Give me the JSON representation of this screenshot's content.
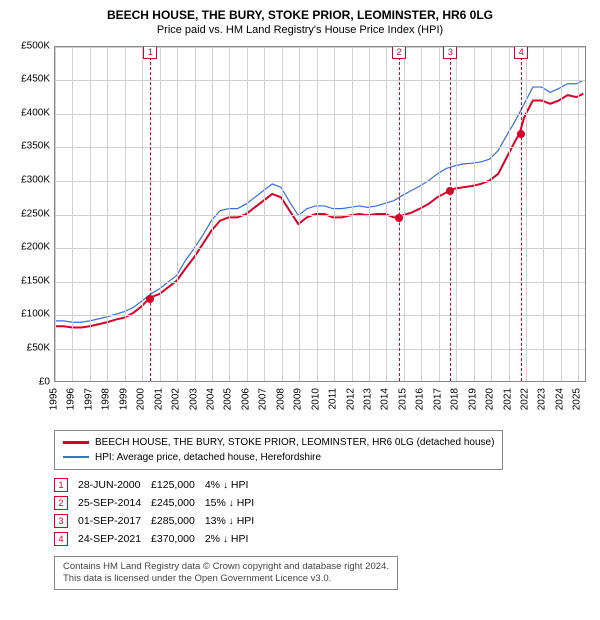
{
  "title_line1": "BEECH HOUSE, THE BURY, STOKE PRIOR, LEOMINSTER, HR6 0LG",
  "title_line2": "Price paid vs. HM Land Registry's House Price Index (HPI)",
  "chart": {
    "type": "line",
    "background_color": "#ffffff",
    "grid_color": "#d0d0d0",
    "axis_color": "#888888",
    "x_years_start": 1995,
    "x_years_end": 2025,
    "x_ticks": [
      1995,
      1996,
      1997,
      1998,
      1999,
      2000,
      2001,
      2002,
      2003,
      2004,
      2005,
      2006,
      2007,
      2008,
      2009,
      2010,
      2011,
      2012,
      2013,
      2014,
      2015,
      2016,
      2017,
      2018,
      2019,
      2020,
      2021,
      2022,
      2023,
      2024,
      2025
    ],
    "ylim": [
      0,
      500000
    ],
    "ytick_step": 50000,
    "yticks": [
      "£0",
      "£50K",
      "£100K",
      "£150K",
      "£200K",
      "£250K",
      "£300K",
      "£350K",
      "£400K",
      "£450K",
      "£500K"
    ],
    "series": [
      {
        "name": "property",
        "label": "BEECH HOUSE, THE BURY, STOKE PRIOR, LEOMINSTER, HR6 0LG (detached house)",
        "color": "#d8002a",
        "width": 2,
        "points": [
          [
            1995.0,
            82000
          ],
          [
            1995.5,
            82000
          ],
          [
            1996.0,
            80000
          ],
          [
            1996.5,
            80000
          ],
          [
            1997.0,
            82000
          ],
          [
            1997.5,
            85000
          ],
          [
            1998.0,
            88000
          ],
          [
            1998.5,
            92000
          ],
          [
            1999.0,
            95000
          ],
          [
            1999.5,
            102000
          ],
          [
            2000.0,
            112000
          ],
          [
            2000.47,
            125000
          ],
          [
            2001.0,
            130000
          ],
          [
            2001.5,
            140000
          ],
          [
            2002.0,
            150000
          ],
          [
            2002.5,
            168000
          ],
          [
            2003.0,
            185000
          ],
          [
            2003.5,
            205000
          ],
          [
            2004.0,
            225000
          ],
          [
            2004.5,
            240000
          ],
          [
            2005.0,
            245000
          ],
          [
            2005.5,
            245000
          ],
          [
            2006.0,
            250000
          ],
          [
            2006.5,
            260000
          ],
          [
            2007.0,
            270000
          ],
          [
            2007.5,
            280000
          ],
          [
            2008.0,
            275000
          ],
          [
            2008.5,
            255000
          ],
          [
            2009.0,
            235000
          ],
          [
            2009.5,
            245000
          ],
          [
            2010.0,
            250000
          ],
          [
            2010.5,
            250000
          ],
          [
            2011.0,
            245000
          ],
          [
            2011.5,
            245000
          ],
          [
            2012.0,
            248000
          ],
          [
            2012.5,
            250000
          ],
          [
            2013.0,
            248000
          ],
          [
            2013.5,
            250000
          ],
          [
            2014.0,
            250000
          ],
          [
            2014.5,
            245000
          ],
          [
            2014.73,
            245000
          ],
          [
            2015.0,
            248000
          ],
          [
            2015.5,
            252000
          ],
          [
            2016.0,
            258000
          ],
          [
            2016.5,
            265000
          ],
          [
            2017.0,
            275000
          ],
          [
            2017.5,
            282000
          ],
          [
            2017.67,
            285000
          ],
          [
            2018.0,
            288000
          ],
          [
            2018.5,
            290000
          ],
          [
            2019.0,
            292000
          ],
          [
            2019.5,
            295000
          ],
          [
            2020.0,
            300000
          ],
          [
            2020.5,
            310000
          ],
          [
            2021.0,
            335000
          ],
          [
            2021.5,
            360000
          ],
          [
            2021.73,
            370000
          ],
          [
            2022.0,
            395000
          ],
          [
            2022.5,
            420000
          ],
          [
            2023.0,
            420000
          ],
          [
            2023.5,
            415000
          ],
          [
            2024.0,
            420000
          ],
          [
            2024.5,
            428000
          ],
          [
            2025.0,
            425000
          ],
          [
            2025.4,
            430000
          ]
        ]
      },
      {
        "name": "hpi",
        "label": "HPI: Average price, detached house, Herefordshire",
        "color": "#3a6fd8",
        "width": 1.2,
        "points": [
          [
            1995.0,
            90000
          ],
          [
            1995.5,
            90000
          ],
          [
            1996.0,
            88000
          ],
          [
            1996.5,
            88000
          ],
          [
            1997.0,
            90000
          ],
          [
            1997.5,
            93000
          ],
          [
            1998.0,
            96000
          ],
          [
            1998.5,
            100000
          ],
          [
            1999.0,
            104000
          ],
          [
            1999.5,
            110000
          ],
          [
            2000.0,
            120000
          ],
          [
            2000.5,
            130000
          ],
          [
            2001.0,
            138000
          ],
          [
            2001.5,
            148000
          ],
          [
            2002.0,
            158000
          ],
          [
            2002.5,
            180000
          ],
          [
            2003.0,
            198000
          ],
          [
            2003.5,
            218000
          ],
          [
            2004.0,
            240000
          ],
          [
            2004.5,
            255000
          ],
          [
            2005.0,
            258000
          ],
          [
            2005.5,
            258000
          ],
          [
            2006.0,
            265000
          ],
          [
            2006.5,
            275000
          ],
          [
            2007.0,
            285000
          ],
          [
            2007.5,
            295000
          ],
          [
            2008.0,
            290000
          ],
          [
            2008.5,
            268000
          ],
          [
            2009.0,
            248000
          ],
          [
            2009.5,
            258000
          ],
          [
            2010.0,
            262000
          ],
          [
            2010.5,
            262000
          ],
          [
            2011.0,
            258000
          ],
          [
            2011.5,
            258000
          ],
          [
            2012.0,
            260000
          ],
          [
            2012.5,
            262000
          ],
          [
            2013.0,
            260000
          ],
          [
            2013.5,
            262000
          ],
          [
            2014.0,
            266000
          ],
          [
            2014.5,
            270000
          ],
          [
            2015.0,
            278000
          ],
          [
            2015.5,
            285000
          ],
          [
            2016.0,
            292000
          ],
          [
            2016.5,
            300000
          ],
          [
            2017.0,
            310000
          ],
          [
            2017.5,
            318000
          ],
          [
            2018.0,
            322000
          ],
          [
            2018.5,
            325000
          ],
          [
            2019.0,
            326000
          ],
          [
            2019.5,
            328000
          ],
          [
            2020.0,
            332000
          ],
          [
            2020.5,
            345000
          ],
          [
            2021.0,
            368000
          ],
          [
            2021.5,
            390000
          ],
          [
            2022.0,
            415000
          ],
          [
            2022.5,
            440000
          ],
          [
            2023.0,
            440000
          ],
          [
            2023.5,
            432000
          ],
          [
            2024.0,
            438000
          ],
          [
            2024.5,
            445000
          ],
          [
            2025.0,
            445000
          ],
          [
            2025.4,
            450000
          ]
        ]
      }
    ],
    "event_lines": [
      {
        "idx": "1",
        "year": 2000.47,
        "price": 125000
      },
      {
        "idx": "2",
        "year": 2014.73,
        "price": 245000
      },
      {
        "idx": "3",
        "year": 2017.67,
        "price": 285000
      },
      {
        "idx": "4",
        "year": 2021.73,
        "price": 370000
      }
    ]
  },
  "legend": {
    "rows": [
      {
        "color": "#d8002a",
        "text": "BEECH HOUSE, THE BURY, STOKE PRIOR, LEOMINSTER, HR6 0LG (detached house)",
        "w": 3
      },
      {
        "color": "#3a6fd8",
        "text": "HPI: Average price, detached house, Herefordshire",
        "w": 2
      }
    ]
  },
  "transactions": [
    {
      "idx": "1",
      "date": "28-JUN-2000",
      "price": "£125,000",
      "pct": "4%",
      "dir": "↓",
      "suffix": "HPI"
    },
    {
      "idx": "2",
      "date": "25-SEP-2014",
      "price": "£245,000",
      "pct": "15%",
      "dir": "↓",
      "suffix": "HPI"
    },
    {
      "idx": "3",
      "date": "01-SEP-2017",
      "price": "£285,000",
      "pct": "13%",
      "dir": "↓",
      "suffix": "HPI"
    },
    {
      "idx": "4",
      "date": "24-SEP-2021",
      "price": "£370,000",
      "pct": "2%",
      "dir": "↓",
      "suffix": "HPI"
    }
  ],
  "footer_line1": "Contains HM Land Registry data © Crown copyright and database right 2024.",
  "footer_line2": "This data is licensed under the Open Government Licence v3.0."
}
